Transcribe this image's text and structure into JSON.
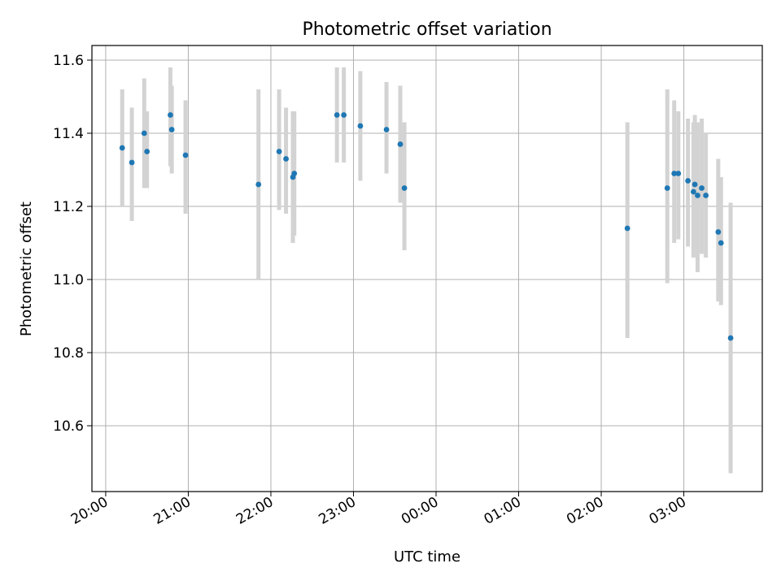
{
  "chart_data": {
    "type": "scatter",
    "title": "Photometric offset variation",
    "xlabel": "UTC time",
    "ylabel": "Photometric offset",
    "x_tick_labels": [
      "20:00",
      "21:00",
      "22:00",
      "23:00",
      "00:00",
      "01:00",
      "02:00",
      "03:00"
    ],
    "y_tick_labels": [
      "10.6",
      "10.8",
      "11.0",
      "11.2",
      "11.4",
      "11.6"
    ],
    "ylim": [
      10.42,
      11.64
    ],
    "xlim": [
      "19:50",
      "03:57"
    ],
    "grid": true,
    "marker_color": "#1f77b4",
    "errorbar_color": "#d3d3d3",
    "series": [
      {
        "points": [
          {
            "time": "20:12",
            "y": 11.36,
            "ylo": 11.2,
            "yhi": 11.52
          },
          {
            "time": "20:19",
            "y": 11.32,
            "ylo": 11.16,
            "yhi": 11.47
          },
          {
            "time": "20:28",
            "y": 11.4,
            "ylo": 11.25,
            "yhi": 11.55
          },
          {
            "time": "20:30",
            "y": 11.35,
            "ylo": 11.25,
            "yhi": 11.46
          },
          {
            "time": "20:47",
            "y": 11.45,
            "ylo": 11.31,
            "yhi": 11.58
          },
          {
            "time": "20:48",
            "y": 11.41,
            "ylo": 11.29,
            "yhi": 11.53
          },
          {
            "time": "20:58",
            "y": 11.34,
            "ylo": 11.18,
            "yhi": 11.49
          },
          {
            "time": "21:51",
            "y": 11.26,
            "ylo": 11.0,
            "yhi": 11.52
          },
          {
            "time": "22:06",
            "y": 11.35,
            "ylo": 11.19,
            "yhi": 11.52
          },
          {
            "time": "22:11",
            "y": 11.33,
            "ylo": 11.18,
            "yhi": 11.47
          },
          {
            "time": "22:16",
            "y": 11.28,
            "ylo": 11.1,
            "yhi": 11.46
          },
          {
            "time": "22:17",
            "y": 11.29,
            "ylo": 11.12,
            "yhi": 11.46
          },
          {
            "time": "22:48",
            "y": 11.45,
            "ylo": 11.32,
            "yhi": 11.58
          },
          {
            "time": "22:53",
            "y": 11.45,
            "ylo": 11.32,
            "yhi": 11.58
          },
          {
            "time": "23:05",
            "y": 11.42,
            "ylo": 11.27,
            "yhi": 11.57
          },
          {
            "time": "23:24",
            "y": 11.41,
            "ylo": 11.29,
            "yhi": 11.54
          },
          {
            "time": "23:34",
            "y": 11.37,
            "ylo": 11.21,
            "yhi": 11.53
          },
          {
            "time": "23:37",
            "y": 11.25,
            "ylo": 11.08,
            "yhi": 11.43
          },
          {
            "time": "02:19",
            "y": 11.14,
            "ylo": 10.84,
            "yhi": 11.43
          },
          {
            "time": "02:48",
            "y": 11.25,
            "ylo": 10.99,
            "yhi": 11.52
          },
          {
            "time": "02:53",
            "y": 11.29,
            "ylo": 11.1,
            "yhi": 11.49
          },
          {
            "time": "02:56",
            "y": 11.29,
            "ylo": 11.11,
            "yhi": 11.46
          },
          {
            "time": "03:03",
            "y": 11.27,
            "ylo": 11.09,
            "yhi": 11.44
          },
          {
            "time": "03:07",
            "y": 11.24,
            "ylo": 11.06,
            "yhi": 11.43
          },
          {
            "time": "03:08",
            "y": 11.26,
            "ylo": 11.07,
            "yhi": 11.45
          },
          {
            "time": "03:10",
            "y": 11.23,
            "ylo": 11.02,
            "yhi": 11.43
          },
          {
            "time": "03:13",
            "y": 11.25,
            "ylo": 11.07,
            "yhi": 11.44
          },
          {
            "time": "03:16",
            "y": 11.23,
            "ylo": 11.06,
            "yhi": 11.4
          },
          {
            "time": "03:25",
            "y": 11.13,
            "ylo": 10.94,
            "yhi": 11.33
          },
          {
            "time": "03:27",
            "y": 11.1,
            "ylo": 10.93,
            "yhi": 11.28
          },
          {
            "time": "03:34",
            "y": 10.84,
            "ylo": 10.47,
            "yhi": 11.21
          }
        ]
      }
    ]
  }
}
